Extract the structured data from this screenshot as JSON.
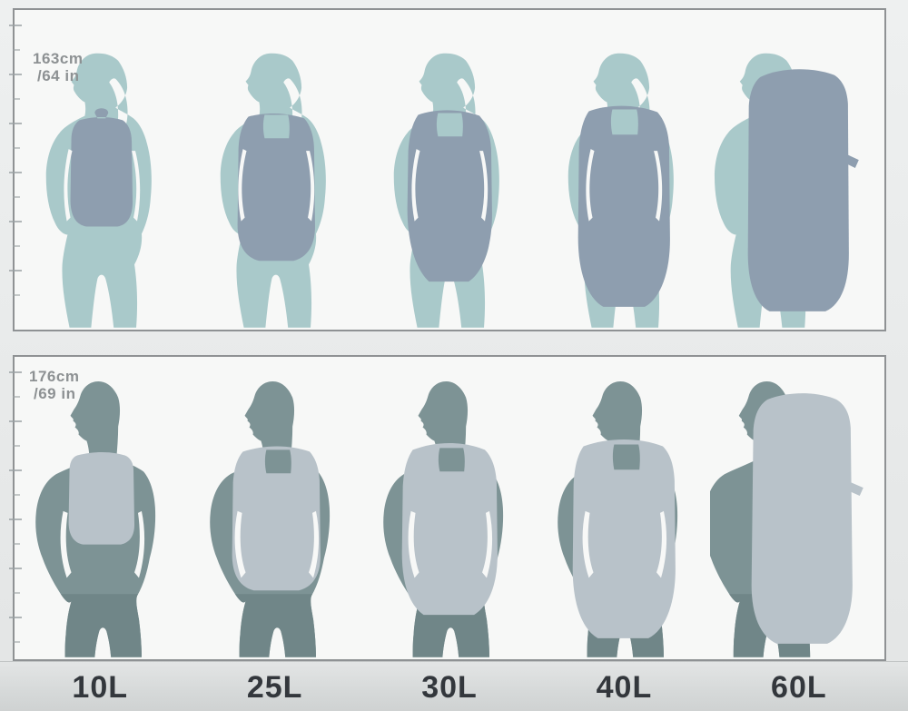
{
  "rows": [
    {
      "figure": "woman-silhouette",
      "height_line1": "163cm",
      "height_line2": "/64 in",
      "bag_sizes": [
        "10L",
        "25L",
        "30L",
        "40L",
        "60L"
      ]
    },
    {
      "figure": "man-silhouette",
      "height_line1": "176cm",
      "height_line2": "/69 in",
      "bag_sizes": [
        "10L",
        "25L",
        "30L",
        "40L",
        "60L"
      ]
    }
  ],
  "size_labels": [
    "10L",
    "25L",
    "30L",
    "40L",
    "60L"
  ],
  "colors": {
    "female_body": "#a9c9ca",
    "female_backpack": "#8e9eaf",
    "male_body": "#7d9395",
    "male_pants": "#708688",
    "male_backpack": "#b8c2c9",
    "panel_background": "#f7f8f7",
    "panel_border": "#8f9294",
    "height_label": "#8d9193",
    "size_label": "#33373c"
  }
}
